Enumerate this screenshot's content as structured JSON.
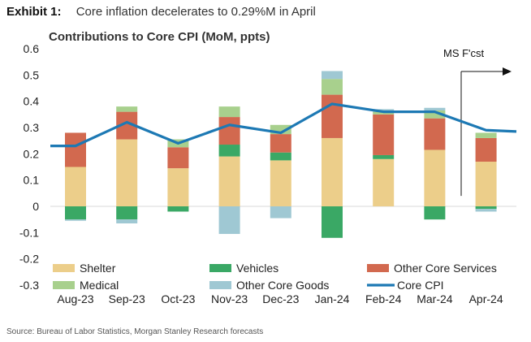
{
  "header": {
    "exhibit_label": "Exhibit 1:",
    "exhibit_title": "Core inflation decelerates to 0.29%M in April"
  },
  "chart_title": "Contributions to Core CPI (MoM, ppts)",
  "forecast_label": "MS F'cst",
  "source": "Source: Bureau of Labor Statistics, Morgan Stanley Research forecasts",
  "colors": {
    "Shelter": "#ecce8a",
    "Vehicles": "#3aa865",
    "Other Core Services": "#d2694f",
    "Medical": "#a8d08d",
    "Other Core Goods": "#9fc8d3",
    "Core CPI": "#1d79b4"
  },
  "chart_data": {
    "type": "bar",
    "stacked": true,
    "categories": [
      "Aug-23",
      "Sep-23",
      "Oct-23",
      "Nov-23",
      "Dec-23",
      "Jan-24",
      "Feb-24",
      "Mar-24",
      "Apr-24"
    ],
    "series": [
      {
        "name": "Shelter",
        "values": [
          0.15,
          0.255,
          0.145,
          0.19,
          0.175,
          0.26,
          0.18,
          0.215,
          0.17
        ]
      },
      {
        "name": "Vehicles",
        "values": [
          -0.05,
          -0.05,
          -0.02,
          0.045,
          0.03,
          -0.12,
          0.015,
          -0.05,
          -0.01
        ]
      },
      {
        "name": "Other Core Services",
        "values": [
          0.13,
          0.105,
          0.08,
          0.105,
          0.07,
          0.165,
          0.155,
          0.12,
          0.09
        ]
      },
      {
        "name": "Medical",
        "values": [
          0.0,
          0.02,
          0.03,
          0.04,
          0.035,
          0.06,
          0.01,
          0.03,
          0.02
        ]
      },
      {
        "name": "Other Core Goods",
        "values": [
          -0.005,
          -0.015,
          0.0,
          -0.105,
          -0.045,
          0.03,
          0.01,
          0.01,
          -0.01
        ]
      }
    ],
    "line": {
      "name": "Core CPI",
      "values": [
        0.23,
        0.32,
        0.24,
        0.31,
        0.28,
        0.39,
        0.36,
        0.36,
        0.29
      ]
    },
    "ylim": [
      -0.3,
      0.6
    ],
    "yticks": [
      "0.6",
      "0.5",
      "0.4",
      "0.3",
      "0.2",
      "0.1",
      "0",
      "-0.1",
      "-0.2",
      "-0.3"
    ],
    "forecast_from": "Apr-24",
    "legend_position": "bottom"
  }
}
